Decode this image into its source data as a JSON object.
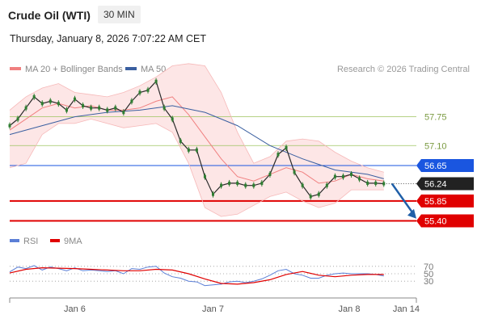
{
  "header": {
    "instrument": "Crude Oil (WTI)",
    "timeframe": "30 MIN",
    "datetime": "Thursday, January 8, 2026 7:07:22 AM CET"
  },
  "legend": {
    "items": [
      {
        "label": "MA 20 + Bollinger Bands",
        "color": "#f08080"
      },
      {
        "label": "MA 50",
        "color": "#3a5fa0"
      }
    ],
    "copyright": "Research © 2026 Trading Central"
  },
  "rsi_legend": {
    "items": [
      {
        "label": "RSI",
        "color": "#5b7fd6"
      },
      {
        "label": "9MA",
        "color": "#e00000"
      }
    ]
  },
  "chart_data": {
    "type": "line",
    "price_range": [
      55.1,
      58.6
    ],
    "x_range": [
      0,
      100
    ],
    "x_tick_labels": [
      {
        "x": 16,
        "label": "Jan 6"
      },
      {
        "x": 50,
        "label": "Jan 7"
      },
      {
        "x": 83.5,
        "label": "Jan 8"
      },
      {
        "x": 97.5,
        "label": "Jan 14"
      }
    ],
    "levels": [
      {
        "value": 57.75,
        "label": "57.75",
        "kind": "resistance",
        "color": "#9dc45f"
      },
      {
        "value": 57.1,
        "label": "57.10",
        "kind": "resistance",
        "color": "#9dc45f"
      },
      {
        "value": 56.65,
        "label": "56.65",
        "kind": "pivot",
        "color": "#1a56e0"
      },
      {
        "value": 55.85,
        "label": "55.85",
        "kind": "target",
        "color": "#e00000"
      },
      {
        "value": 55.4,
        "label": "55.40",
        "kind": "target",
        "color": "#e00000"
      }
    ],
    "last_price": {
      "value": 56.24,
      "label": "56.24"
    },
    "price": {
      "x": [
        0,
        2,
        4,
        6,
        8,
        10,
        12,
        14,
        16,
        18,
        20,
        22,
        24,
        26,
        28,
        30,
        32,
        34,
        36,
        38,
        40,
        42,
        44,
        46,
        48,
        50,
        52,
        54,
        56,
        58,
        60,
        62,
        64,
        66,
        68,
        70,
        72,
        74,
        76,
        78,
        80,
        82,
        84,
        86,
        88,
        90,
        92
      ],
      "y": [
        57.55,
        57.7,
        57.95,
        58.2,
        58.05,
        58.1,
        58.05,
        57.9,
        58.15,
        58.0,
        57.95,
        57.95,
        57.9,
        57.95,
        57.85,
        58.1,
        58.3,
        58.35,
        58.55,
        57.95,
        57.7,
        57.2,
        57.0,
        57.0,
        56.4,
        56.0,
        56.2,
        56.25,
        56.25,
        56.2,
        56.2,
        56.25,
        56.45,
        56.9,
        57.05,
        56.5,
        56.2,
        55.95,
        56.0,
        56.2,
        56.4,
        56.4,
        56.45,
        56.35,
        56.25,
        56.25,
        56.24
      ]
    },
    "ma20": {
      "x": [
        0,
        4,
        8,
        12,
        16,
        20,
        24,
        28,
        32,
        36,
        40,
        44,
        48,
        52,
        56,
        60,
        64,
        68,
        72,
        76,
        80,
        84,
        88,
        92
      ],
      "y": [
        57.45,
        57.7,
        57.95,
        58.05,
        57.95,
        58.0,
        57.9,
        57.9,
        57.95,
        58.1,
        58.2,
        57.8,
        57.3,
        56.8,
        56.4,
        56.3,
        56.45,
        56.6,
        56.5,
        56.25,
        56.3,
        56.45,
        56.35,
        56.3
      ]
    },
    "ma50": {
      "x": [
        0,
        8,
        16,
        24,
        32,
        40,
        48,
        56,
        64,
        72,
        80,
        88,
        92
      ],
      "y": [
        57.35,
        57.55,
        57.75,
        57.85,
        57.9,
        58.0,
        57.85,
        57.55,
        57.1,
        56.8,
        56.55,
        56.45,
        56.35
      ]
    },
    "bb_upper": {
      "x": [
        0,
        4,
        8,
        12,
        16,
        20,
        24,
        28,
        32,
        36,
        40,
        44,
        48,
        52,
        56,
        60,
        64,
        68,
        72,
        76,
        80,
        84,
        88,
        92
      ],
      "y": [
        57.9,
        58.2,
        58.4,
        58.5,
        58.3,
        58.25,
        58.2,
        58.3,
        58.45,
        58.65,
        58.9,
        58.95,
        58.9,
        58.3,
        57.4,
        56.7,
        56.85,
        57.2,
        57.25,
        57.2,
        56.95,
        56.75,
        56.6,
        56.5
      ]
    },
    "bb_lower": {
      "x": [
        0,
        4,
        8,
        12,
        16,
        20,
        24,
        28,
        32,
        36,
        40,
        44,
        48,
        52,
        56,
        60,
        64,
        68,
        72,
        76,
        80,
        84,
        88,
        92
      ],
      "y": [
        56.6,
        56.7,
        57.35,
        57.6,
        57.6,
        57.7,
        57.6,
        57.5,
        57.55,
        57.6,
        57.4,
        56.7,
        55.7,
        55.5,
        55.55,
        55.75,
        55.95,
        56.05,
        55.85,
        55.7,
        55.8,
        56.1,
        56.1,
        56.1
      ]
    },
    "forecast_arrow": {
      "from": [
        94,
        56.24
      ],
      "to": [
        100,
        55.45
      ]
    },
    "rsi": {
      "range": [
        0,
        100
      ],
      "ticks": [
        {
          "value": 70,
          "label": "70"
        },
        {
          "value": 50,
          "label": "50"
        },
        {
          "value": 30,
          "label": "30"
        }
      ],
      "x": [
        0,
        2,
        4,
        6,
        8,
        10,
        12,
        14,
        16,
        18,
        20,
        22,
        24,
        26,
        28,
        30,
        32,
        34,
        36,
        38,
        40,
        42,
        44,
        46,
        48,
        50,
        52,
        54,
        56,
        58,
        60,
        62,
        64,
        66,
        68,
        70,
        72,
        74,
        76,
        78,
        80,
        82,
        84,
        86,
        88,
        90,
        92
      ],
      "y": [
        55,
        68,
        64,
        72,
        60,
        68,
        64,
        58,
        66,
        58,
        60,
        58,
        56,
        58,
        50,
        64,
        62,
        68,
        70,
        52,
        42,
        38,
        30,
        28,
        18,
        20,
        22,
        28,
        30,
        26,
        30,
        36,
        46,
        58,
        62,
        50,
        46,
        38,
        38,
        46,
        50,
        52,
        50,
        50,
        50,
        48,
        44
      ]
    },
    "rsi_ma": {
      "x": [
        0,
        4,
        8,
        12,
        16,
        20,
        24,
        28,
        32,
        36,
        40,
        44,
        48,
        52,
        56,
        60,
        64,
        68,
        72,
        76,
        80,
        84,
        88,
        92
      ],
      "y": [
        52,
        62,
        66,
        65,
        64,
        62,
        60,
        58,
        58,
        62,
        60,
        50,
        36,
        24,
        22,
        26,
        34,
        48,
        56,
        46,
        42,
        46,
        48,
        48
      ]
    }
  }
}
